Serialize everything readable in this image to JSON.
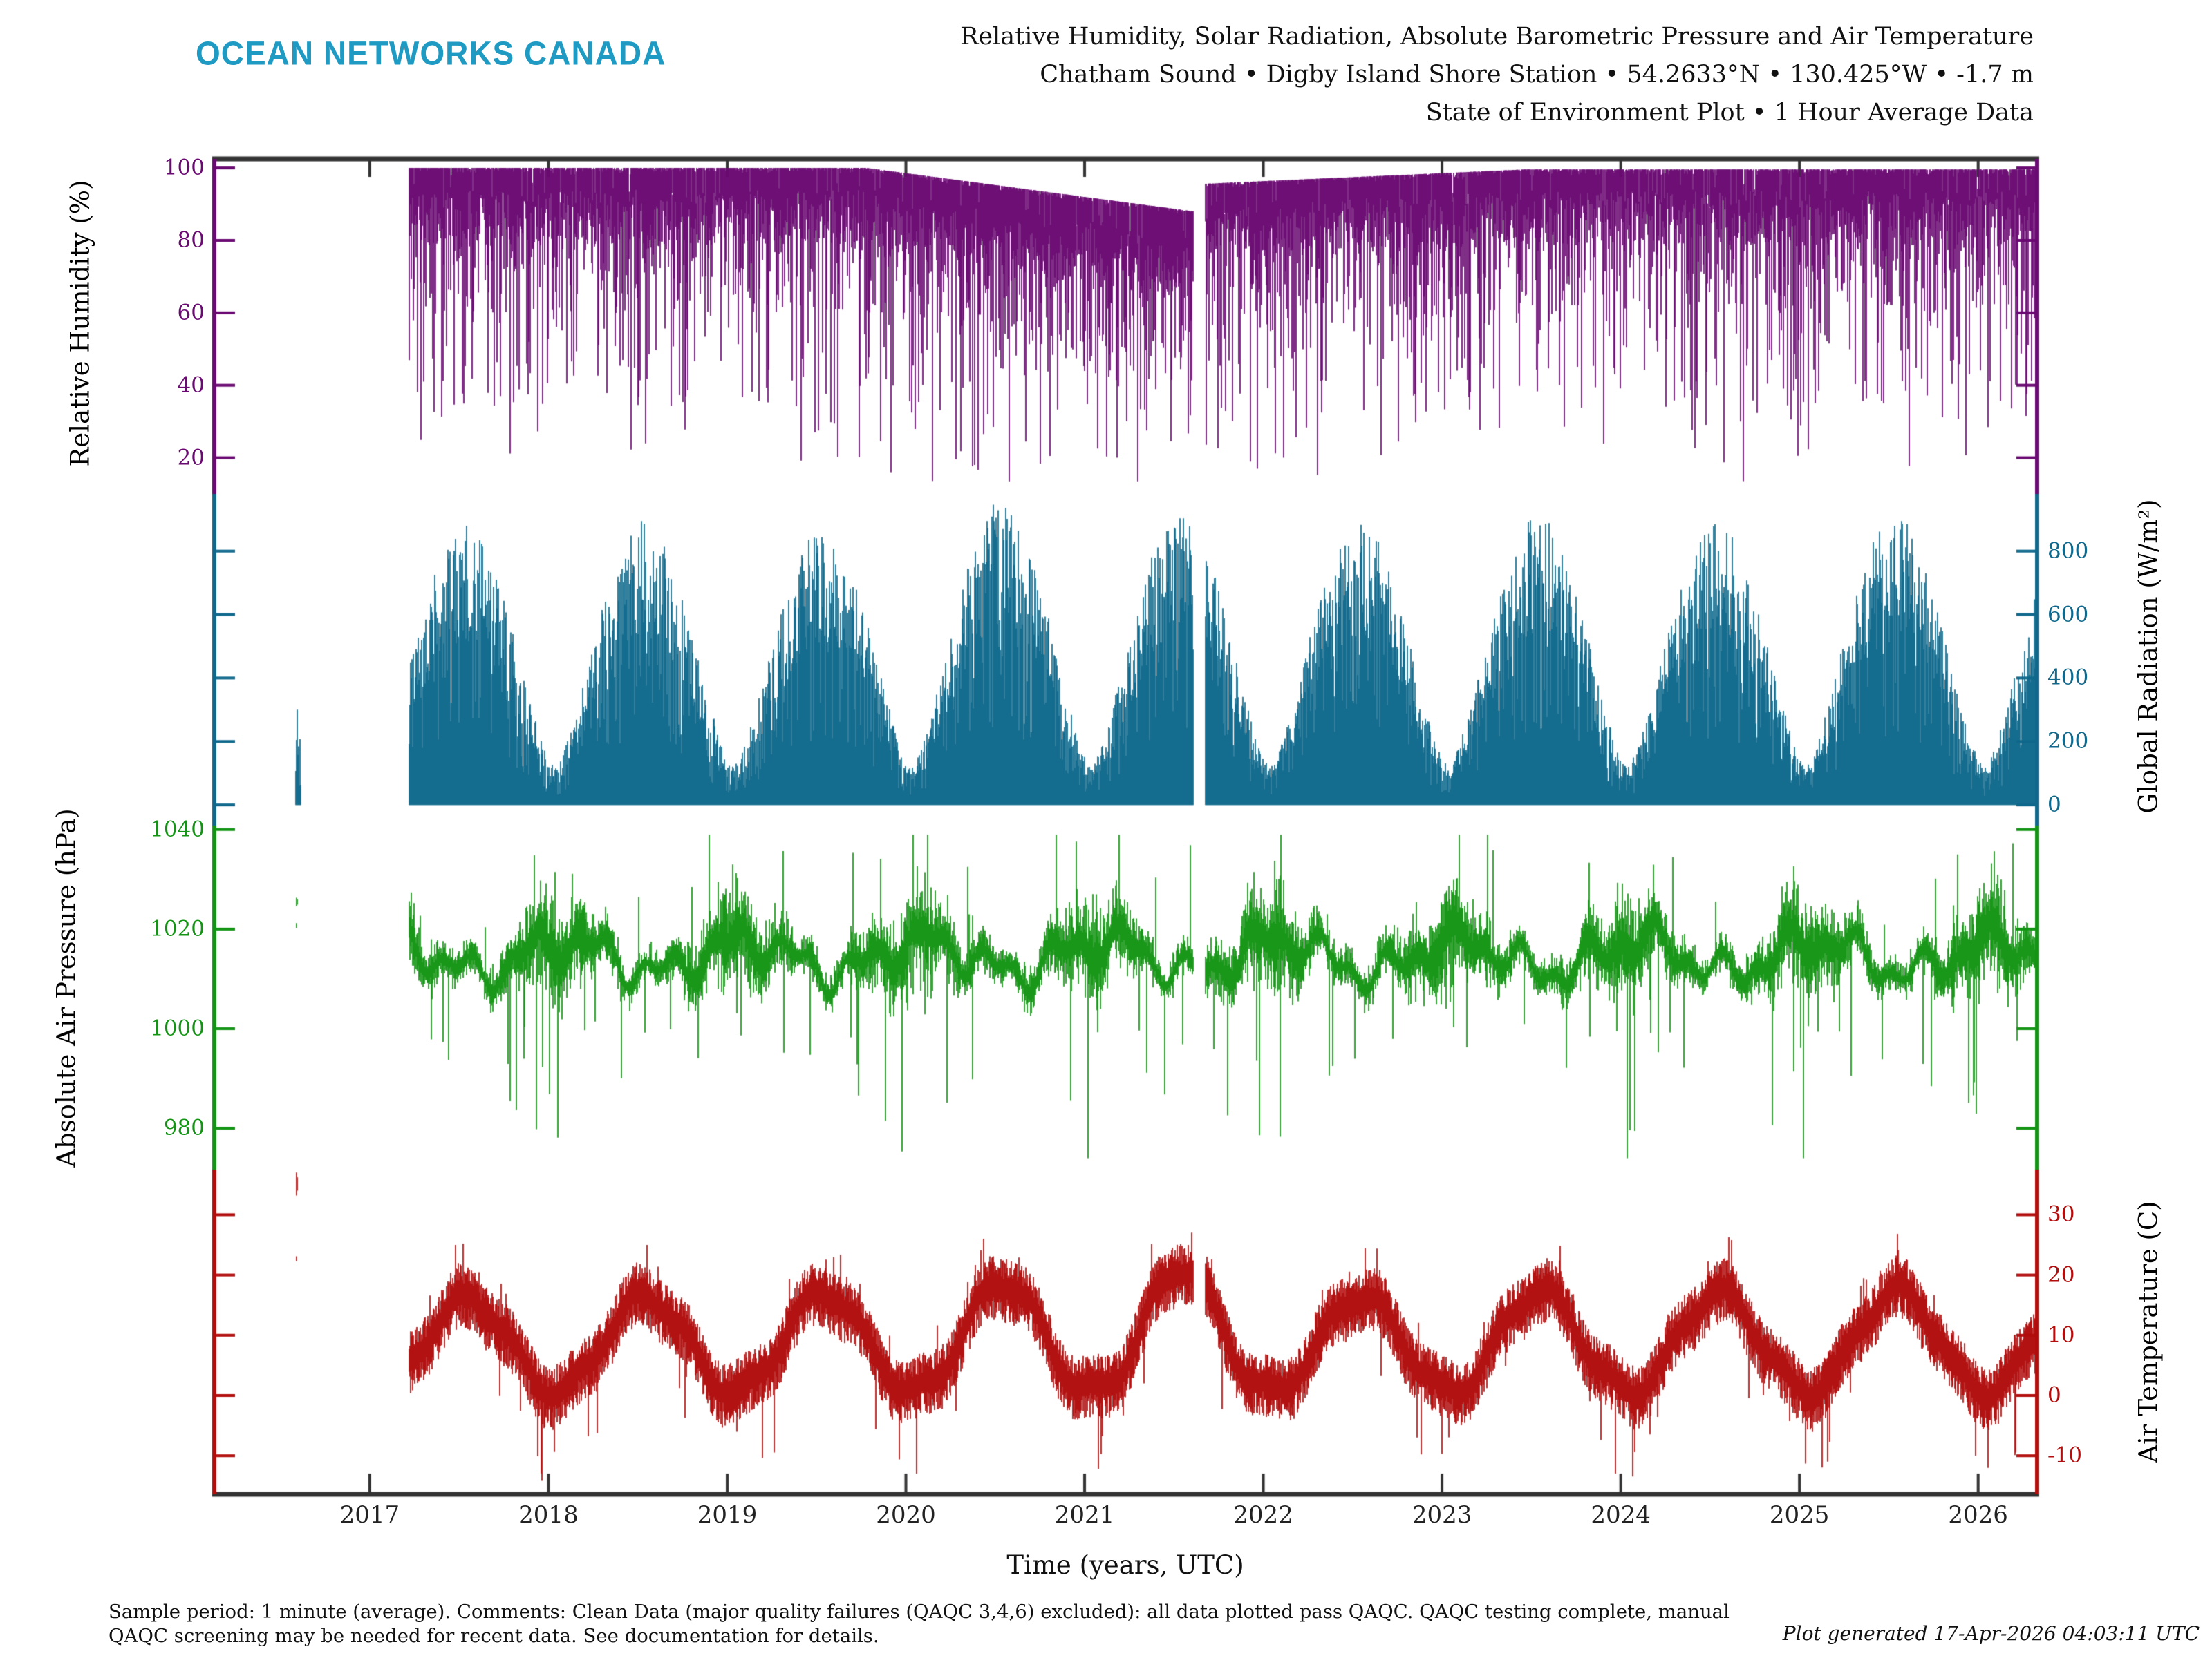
{
  "header": {
    "logo": "OCEAN NETWORKS CANADA",
    "logo_color": "#1f9ac3",
    "title_lines": [
      "Relative Humidity, Solar Radiation, Absolute Barometric Pressure and Air Temperature",
      "Chatham Sound • Digby Island Shore Station • 54.2633°N • 130.425°W • -1.7 m",
      "State of Environment Plot • 1 Hour Average Data"
    ]
  },
  "footer": {
    "left_lines": [
      "Sample period: 1 minute (average). Comments: Clean Data (major quality failures (QAQC 3,4,6) excluded): all data plotted pass QAQC. QAQC testing complete, manual",
      "QAQC screening may be needed for recent data. See documentation for details."
    ],
    "generated": "Plot generated 17-Apr-2026 04:03:11 UTC"
  },
  "chart_data": {
    "type": "line",
    "frame_color": "#333333",
    "x_axis": {
      "label": "Time (years, UTC)",
      "ticks": [
        2017,
        2018,
        2019,
        2020,
        2021,
        2022,
        2023,
        2024,
        2025,
        2026
      ],
      "range": [
        2016.13,
        2026.33
      ],
      "data_start": 2017.22,
      "data_end": 2026.33,
      "gap": [
        2021.61,
        2021.675
      ],
      "early_cluster_time": [
        2016.585,
        2016.615
      ]
    },
    "panels": [
      {
        "id": "relative_humidity",
        "label": "Relative Humidity (%)",
        "color": "#6a0a72",
        "label_side": "left",
        "ticks": [
          100,
          80,
          60,
          40,
          20
        ],
        "value_range": [
          102.5,
          10
        ],
        "summary": {
          "typical_band": [
            80,
            100
          ],
          "top_edge": 100,
          "top_edge_depression": {
            "from": 2019.78,
            "to": 2021.61,
            "drops_to": 88
          },
          "spikes_down_to": 18,
          "units": "%"
        },
        "gen": {
          "seed": 11,
          "deep_p": 0.12,
          "verydeep_p": 0.035
        }
      },
      {
        "id": "global_radiation",
        "label": "Global Radiation (W/m²)",
        "color": "#10698c",
        "label_side": "right",
        "ticks": [
          800,
          600,
          400,
          200,
          0
        ],
        "value_range": [
          980,
          -65
        ],
        "summary": {
          "winter_min_envelope": 115,
          "annual_summer_peak": {
            "2017": 830,
            "2018": 845,
            "2019": 820,
            "2020": 905,
            "2021": 885,
            "2022": 845,
            "2023": 870,
            "2024": 850,
            "2025": 875,
            "2026": 850
          },
          "nightly_min": 0,
          "early_cluster_values": [
            0,
            300
          ],
          "units": "W/m²"
        },
        "gen": {
          "seed": 23,
          "cloudy_p": 0.18
        }
      },
      {
        "id": "absolute_air_pressure",
        "label": "Absolute Air Pressure (hPa)",
        "color": "#149414",
        "label_side": "left",
        "ticks": [
          1040,
          1020,
          1000,
          980
        ],
        "value_range": [
          1040.8,
          971.7
        ],
        "summary": {
          "mean": 1014.5,
          "typical_range": [
            1002,
            1026
          ],
          "extreme_high": 1039,
          "extreme_low": 975,
          "early_cluster_values": [
            1020.5,
            1026
          ],
          "units": "hPa"
        },
        "gen": {
          "seed": 37,
          "low_spike_p": 0.05,
          "high_spike_p": 0.03
        }
      },
      {
        "id": "air_temperature",
        "label": "Air Temperature (C)",
        "color": "#b20e0e",
        "label_side": "right",
        "ticks": [
          30,
          20,
          10,
          0,
          -10
        ],
        "value_range": [
          37.5,
          -16.4
        ],
        "summary": {
          "winter_center": 1,
          "summer_center": 16,
          "annual_summer_peak": {
            "2017": 20,
            "2018": 21,
            "2019": 22,
            "2020": 25,
            "2021": 29,
            "2022": 22,
            "2023": 23,
            "2024": 22,
            "2025": 23
          },
          "winter_dips_to": -14,
          "early_cluster_values": [
            22.5,
            37
          ],
          "units": "°C"
        },
        "gen": {
          "seed": 51,
          "peak_boost": {
            "2018": 0.5,
            "2019": 1.0,
            "2020": 3.0,
            "2021": 5.5,
            "2022": 0.5,
            "2023": 1.5,
            "2024": 1.0,
            "2025": 1.5
          }
        }
      }
    ]
  }
}
